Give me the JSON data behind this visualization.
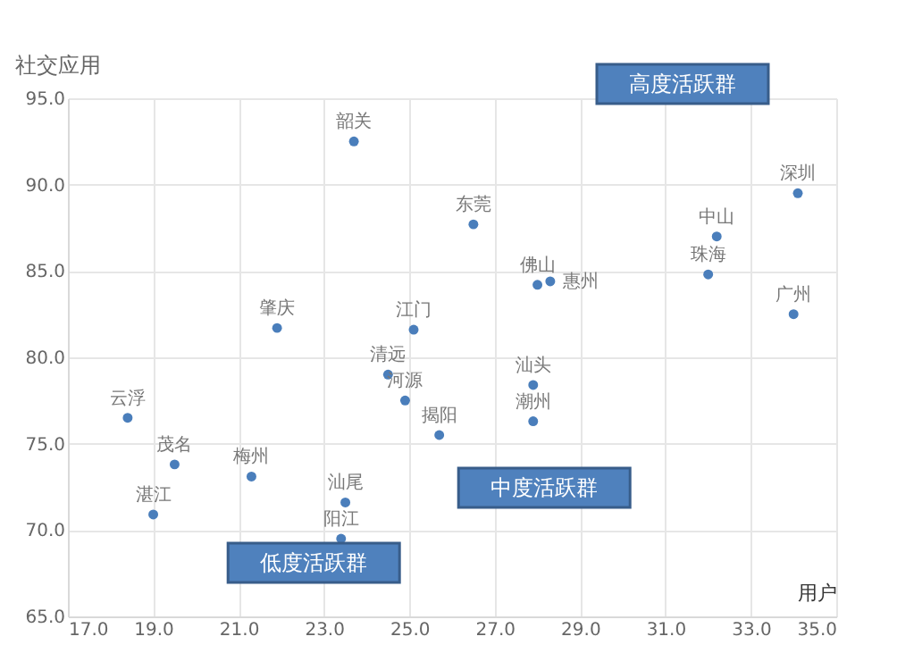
{
  "chart_data": {
    "type": "scatter",
    "xlabel": "用户",
    "ylabel": "社交应用",
    "x": [
      23.7,
      26.5,
      28.0,
      28.3,
      32.2,
      32.0,
      34.1,
      34.0,
      21.9,
      25.1,
      24.5,
      24.9,
      25.7,
      27.9,
      27.9,
      18.4,
      19.5,
      19.0,
      21.3,
      23.5,
      23.4
    ],
    "series": [
      {
        "color": "#4a7ebb",
        "values": [
          92.5,
          87.7,
          84.2,
          84.4,
          87.0,
          84.8,
          89.5,
          82.5,
          81.7,
          81.6,
          79.0,
          77.5,
          75.5,
          78.4,
          76.3,
          76.5,
          73.8,
          70.9,
          73.1,
          71.6,
          69.5
        ]
      }
    ],
    "xlim": [
      17,
      35
    ],
    "ylim": [
      65,
      95
    ],
    "xticks": [
      {
        "value": 17,
        "label": "17.0"
      },
      {
        "value": 19,
        "label": "19.0"
      },
      {
        "value": 21,
        "label": "21.0"
      },
      {
        "value": 23,
        "label": "23.0"
      },
      {
        "value": 25,
        "label": "25.0"
      },
      {
        "value": 27,
        "label": "27.0"
      },
      {
        "value": 29,
        "label": "29.0"
      },
      {
        "value": 31,
        "label": "31.0"
      },
      {
        "value": 33,
        "label": "33.0"
      },
      {
        "value": 35,
        "label": "35.0"
      }
    ],
    "yticks": [
      {
        "value": 65,
        "label": "65.0"
      },
      {
        "value": 70,
        "label": "70.0"
      },
      {
        "value": 75,
        "label": "75.0"
      },
      {
        "value": 80,
        "label": "80.0"
      },
      {
        "value": 85,
        "label": "85.0"
      },
      {
        "value": 90,
        "label": "90.0"
      },
      {
        "value": 95,
        "label": "95.0"
      }
    ],
    "grid": true,
    "marker": "circle",
    "annotations": [
      {
        "text": "韶关",
        "x": 23.7,
        "y": 92.5
      },
      {
        "text": "东莞",
        "x": 26.5,
        "y": 87.7
      },
      {
        "text": "佛山",
        "x": 28.0,
        "y": 84.2
      },
      {
        "text": "惠州",
        "x": 28.3,
        "y": 84.4
      },
      {
        "text": "中山",
        "x": 32.2,
        "y": 87.0
      },
      {
        "text": "珠海",
        "x": 32.0,
        "y": 84.8
      },
      {
        "text": "深圳",
        "x": 34.1,
        "y": 89.5
      },
      {
        "text": "广州",
        "x": 34.0,
        "y": 82.5
      },
      {
        "text": "肇庆",
        "x": 21.9,
        "y": 81.7
      },
      {
        "text": "江门",
        "x": 25.1,
        "y": 81.6
      },
      {
        "text": "清远",
        "x": 24.5,
        "y": 79.0
      },
      {
        "text": "河源",
        "x": 24.9,
        "y": 77.5
      },
      {
        "text": "揭阳",
        "x": 25.7,
        "y": 75.5
      },
      {
        "text": "汕头",
        "x": 27.9,
        "y": 78.4
      },
      {
        "text": "潮州",
        "x": 27.9,
        "y": 76.3
      },
      {
        "text": "云浮",
        "x": 18.4,
        "y": 76.5
      },
      {
        "text": "茂名",
        "x": 19.5,
        "y": 73.8
      },
      {
        "text": "湛江",
        "x": 19.0,
        "y": 70.9
      },
      {
        "text": "梅州",
        "x": 21.3,
        "y": 73.1
      },
      {
        "text": "汕尾",
        "x": 23.5,
        "y": 71.6
      },
      {
        "text": "阳江",
        "x": 23.4,
        "y": 69.5
      },
      "高度活跃群",
      "中度活跃群",
      "低度活跃群"
    ]
  }
}
